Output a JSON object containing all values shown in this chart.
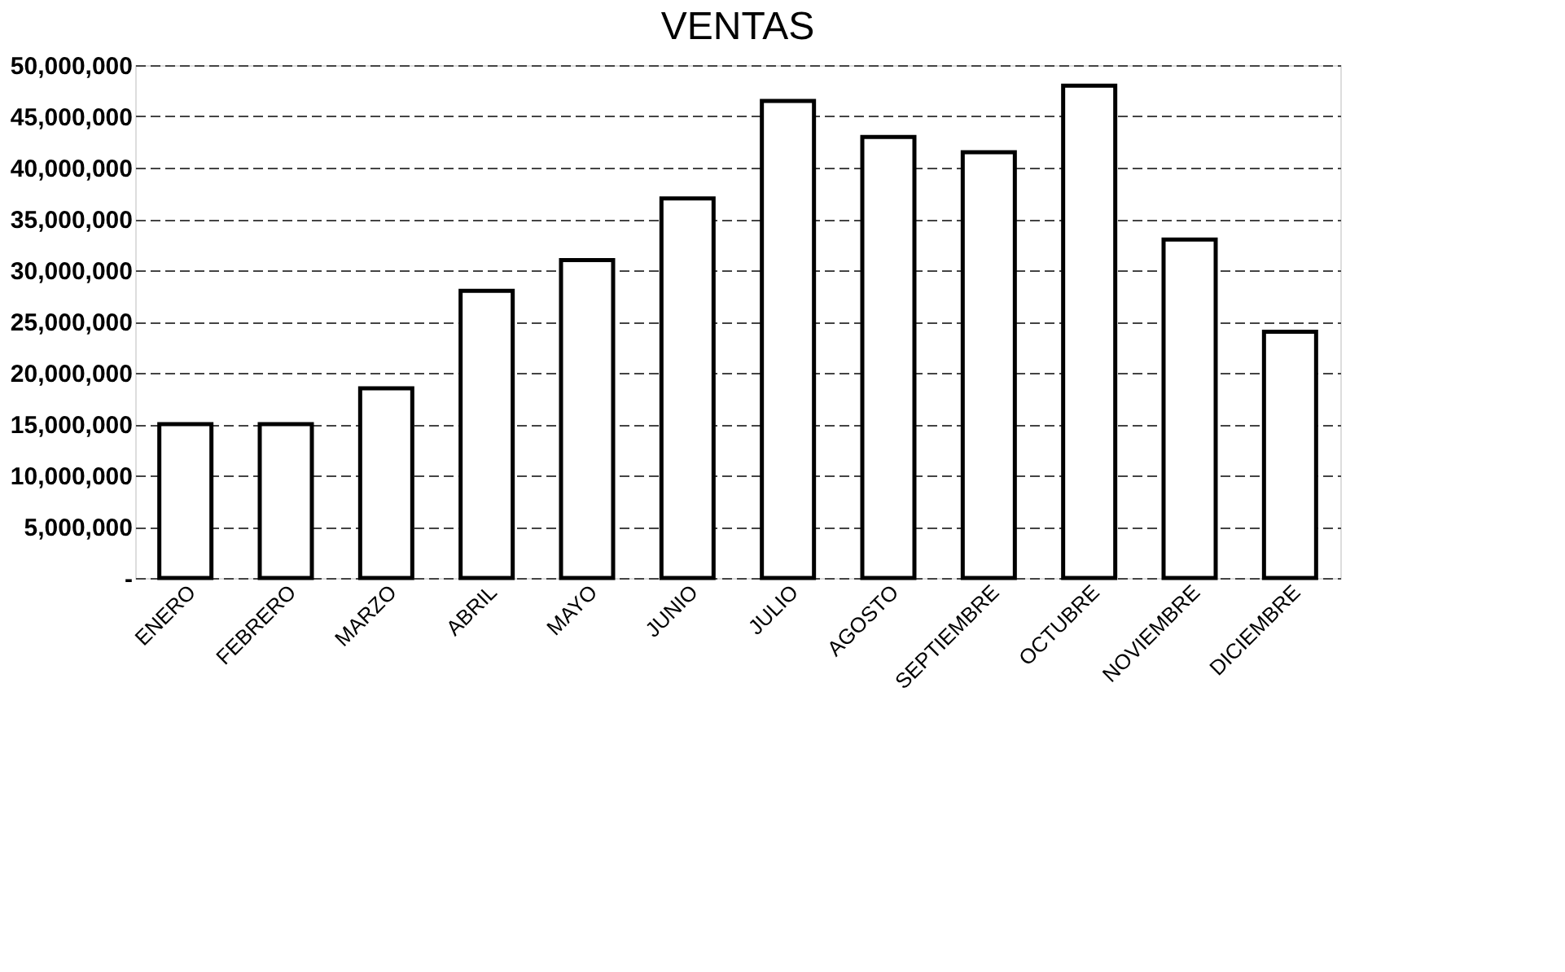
{
  "chart_data": {
    "type": "bar",
    "title": "VENTAS",
    "categories": [
      "ENERO",
      "FEBRERO",
      "MARZO",
      "ABRIL",
      "MAYO",
      "JUNIO",
      "JULIO",
      "AGOSTO",
      "SEPTIEMBRE",
      "OCTUBRE",
      "NOVIEMBRE",
      "DICIEMBRE"
    ],
    "values": [
      15000000,
      15000000,
      18500000,
      28000000,
      31000000,
      37000000,
      46500000,
      43000000,
      41500000,
      48000000,
      33000000,
      24000000
    ],
    "color": "#ffffff",
    "ylim": [
      0,
      50000000
    ],
    "yticks": [
      {
        "value": 0,
        "label": "-"
      },
      {
        "value": 5000000,
        "label": "5,000,000"
      },
      {
        "value": 10000000,
        "label": "10,000,000"
      },
      {
        "value": 15000000,
        "label": "15,000,000"
      },
      {
        "value": 20000000,
        "label": "20,000,000"
      },
      {
        "value": 25000000,
        "label": "25,000,000"
      },
      {
        "value": 30000000,
        "label": "30,000,000"
      },
      {
        "value": 35000000,
        "label": "35,000,000"
      },
      {
        "value": 40000000,
        "label": "40,000,000"
      },
      {
        "value": 45000000,
        "label": "45,000,000"
      },
      {
        "value": 50000000,
        "label": "50,000,000"
      }
    ],
    "grid": "y"
  }
}
